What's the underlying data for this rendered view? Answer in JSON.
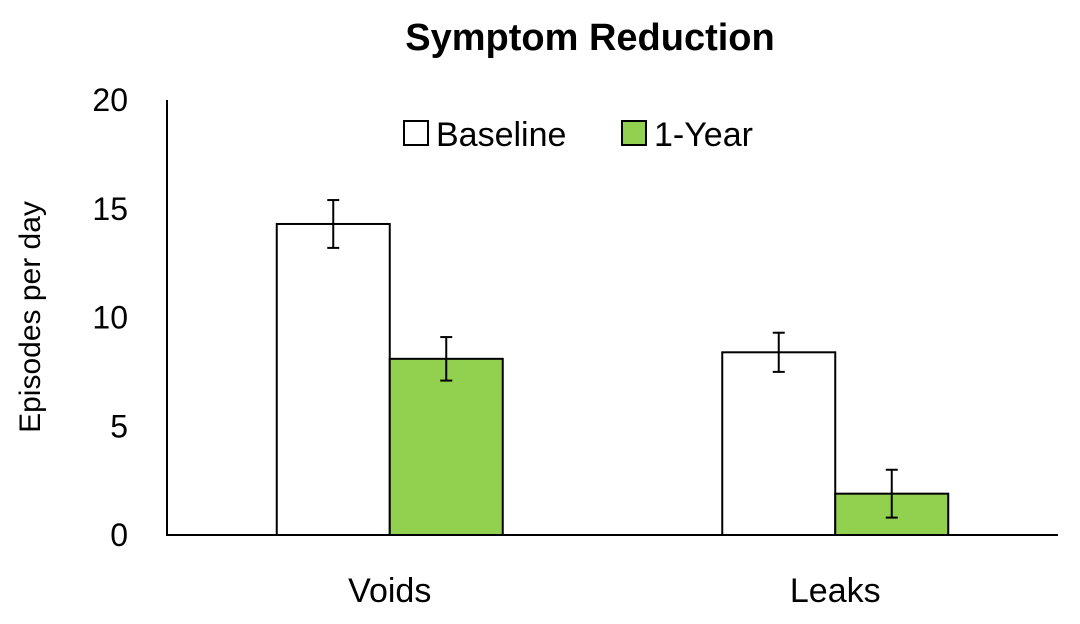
{
  "chart_data": {
    "type": "bar",
    "title": "Symptom Reduction",
    "xlabel": "",
    "ylabel": "Episodes per day",
    "ylim": [
      0,
      20
    ],
    "yticks": [
      0,
      5,
      10,
      15,
      20
    ],
    "categories": [
      "Voids",
      "Leaks"
    ],
    "series": [
      {
        "name": "Baseline",
        "color": "#ffffff",
        "values": [
          14.3,
          8.4
        ],
        "error": [
          1.1,
          0.9
        ]
      },
      {
        "name": "1-Year",
        "color": "#92d050",
        "values": [
          8.1,
          1.9
        ],
        "error": [
          1.0,
          1.1
        ]
      }
    ],
    "legend_position": "top-right",
    "grid": false
  }
}
